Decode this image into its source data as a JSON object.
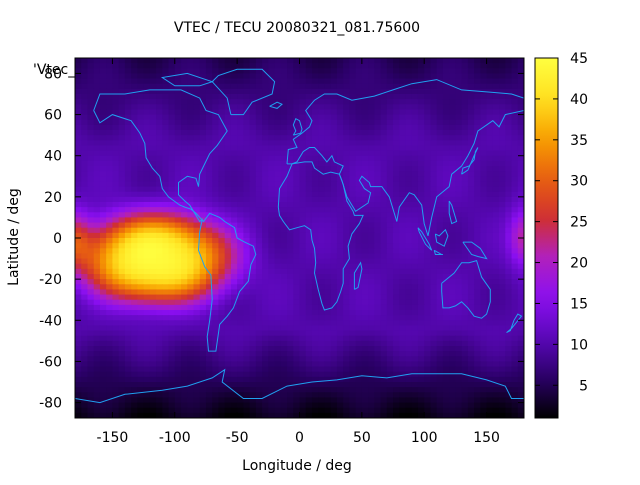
{
  "chart_data": {
    "type": "heatmap",
    "title": "VTEC / TECU 20080321_081.75600",
    "xlabel": "Longitude / deg",
    "ylabel": "Latitude / deg",
    "key_label": "'Vtec_",
    "xlim": [
      -180,
      180
    ],
    "ylim": [
      -87.5,
      87.5
    ],
    "zlim": [
      1,
      45
    ],
    "x_ticks": [
      -150,
      -100,
      -50,
      0,
      50,
      100,
      150
    ],
    "y_ticks": [
      -80,
      -60,
      -40,
      -20,
      0,
      20,
      40,
      60,
      80
    ],
    "z_ticks": [
      5,
      10,
      15,
      20,
      25,
      30,
      35,
      40,
      45
    ],
    "grid": false,
    "colormap": [
      "#000000",
      "#2a0066",
      "#5a08b8",
      "#8a0ff0",
      "#b020c0",
      "#d03030",
      "#e86010",
      "#f8a000",
      "#ffe020",
      "#ffff40"
    ],
    "coastline_color": "#20a0f0",
    "anomaly_crest": {
      "center_lon": -115,
      "center_lat": -10,
      "lon_halfwidth": 60,
      "lat_halfwidth": 22,
      "peak_value": 44
    },
    "anomaly_secondary": {
      "center_lon": 180,
      "center_lat": 0,
      "lon_halfwidth": 12,
      "lat_halfwidth": 14,
      "peak_value": 22
    },
    "background_value": 10,
    "polar_min_value": 2
  }
}
